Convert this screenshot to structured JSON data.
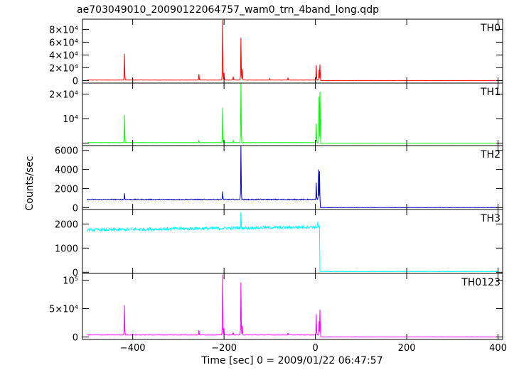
{
  "header": {
    "file_title": "ae703049010_20090122064757_wam0_trn_4band_long.qdp"
  },
  "chart_data": {
    "type": "line",
    "title": "ae703049010_20090122064757_wam0_trn_4band_long.qdp",
    "xlabel": "Time [sec] 0 = 2009/01/22 06:47:57",
    "ylabel": "Counts/sec",
    "xlim": [
      -510,
      410
    ],
    "x_ticks": [
      {
        "value": -400,
        "label": "−400"
      },
      {
        "value": -200,
        "label": "−200"
      },
      {
        "value": 0,
        "label": "0"
      },
      {
        "value": 200,
        "label": "200"
      },
      {
        "value": 400,
        "label": "400"
      }
    ],
    "panels": [
      {
        "name": "TH0",
        "color": "#ff0000",
        "ylim": [
          -4000,
          96000
        ],
        "y_ticks": [
          {
            "value": 0,
            "label": "0"
          },
          {
            "value": 20000,
            "label": "2×10⁴"
          },
          {
            "value": 40000,
            "label": "4×10⁴"
          },
          {
            "value": 60000,
            "label": "6×10⁴"
          },
          {
            "value": 80000,
            "label": "8×10⁴"
          }
        ],
        "baseline_pre": 800,
        "noise_pre": 250,
        "baseline_post": 0,
        "noise_post": 80,
        "spikes": [
          [
            -418,
            42000
          ],
          [
            -255,
            10000
          ],
          [
            -203,
            95000
          ],
          [
            -200,
            12000
          ],
          [
            -163,
            67000
          ],
          [
            -160,
            18000
          ],
          [
            -180,
            6000
          ],
          [
            -100,
            3000
          ],
          [
            -60,
            4500
          ],
          [
            2,
            24000
          ],
          [
            8,
            17000
          ],
          [
            10,
            25000
          ]
        ]
      },
      {
        "name": "TH1",
        "color": "#00ff00",
        "ylim": [
          -1000,
          24500
        ],
        "y_ticks": [
          {
            "value": 0,
            "label": ""
          },
          {
            "value": 10000,
            "label": "10⁴"
          },
          {
            "value": 20000,
            "label": "2×10⁴"
          }
        ],
        "baseline_pre": 200,
        "noise_pre": 60,
        "baseline_post": 0,
        "noise_post": 20,
        "spikes": [
          [
            -418,
            11500
          ],
          [
            -255,
            1000
          ],
          [
            -203,
            14500
          ],
          [
            -163,
            25000
          ],
          [
            -180,
            1000
          ],
          [
            2,
            8000
          ],
          [
            8,
            19000
          ],
          [
            10,
            21000
          ]
        ]
      },
      {
        "name": "TH2",
        "color": "#0000cc",
        "ylim": [
          -200,
          6500
        ],
        "y_ticks": [
          {
            "value": 0,
            "label": "0"
          },
          {
            "value": 2000,
            "label": "2000"
          },
          {
            "value": 4000,
            "label": "4000"
          },
          {
            "value": 6000,
            "label": "6000"
          }
        ],
        "baseline_pre": 850,
        "noise_pre": 50,
        "baseline_post": 0,
        "noise_post": 15,
        "spikes": [
          [
            -418,
            1500
          ],
          [
            -203,
            1700
          ],
          [
            -163,
            6500
          ],
          [
            2,
            2600
          ],
          [
            7,
            4000
          ],
          [
            9,
            3800
          ]
        ]
      },
      {
        "name": "TH3",
        "color": "#00ffff",
        "ylim": [
          -50,
          2600
        ],
        "y_ticks": [
          {
            "value": 0,
            "label": "0"
          },
          {
            "value": 1000,
            "label": "1000"
          },
          {
            "value": 2000,
            "label": "2000"
          }
        ],
        "baseline_pre": 1750,
        "noise_pre": 60,
        "baseline_post": 30,
        "noise_post": 10,
        "trend_pre": 0.25,
        "spikes": [
          [
            -163,
            2500
          ],
          [
            5,
            2100
          ]
        ]
      },
      {
        "name": "TH0123",
        "color": "#ff00ff",
        "ylim": [
          -4500,
          112000
        ],
        "y_ticks": [
          {
            "value": 0,
            "label": "0"
          },
          {
            "value": 50000,
            "label": "5×10⁴"
          },
          {
            "value": 100000,
            "label": "10⁵"
          }
        ],
        "baseline_pre": 3500,
        "noise_pre": 400,
        "baseline_post": 0,
        "noise_post": 150,
        "spikes": [
          [
            -418,
            56000
          ],
          [
            -255,
            12000
          ],
          [
            -203,
            110000
          ],
          [
            -200,
            15000
          ],
          [
            -163,
            96000
          ],
          [
            -160,
            20000
          ],
          [
            -180,
            8000
          ],
          [
            -100,
            4000
          ],
          [
            -60,
            6000
          ],
          [
            2,
            40000
          ],
          [
            8,
            28000
          ],
          [
            10,
            48000
          ]
        ]
      }
    ]
  }
}
